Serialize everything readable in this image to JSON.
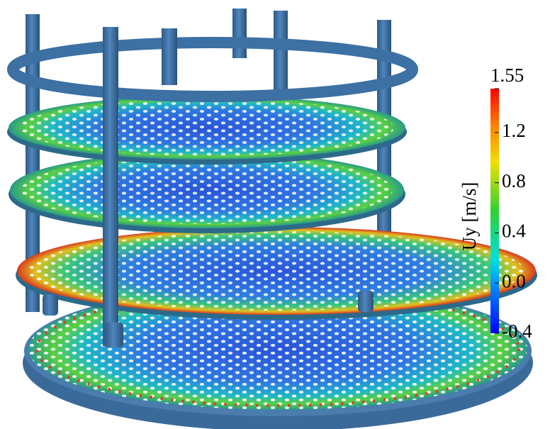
{
  "colorbar": {
    "label": "Uy [m/s]",
    "lim": [
      -0.4,
      1.55
    ],
    "ticks": [
      1.55,
      1.2,
      0.8,
      0.4,
      {
        "value": 0,
        "label": "0.0"
      },
      -0.4
    ]
  }
}
